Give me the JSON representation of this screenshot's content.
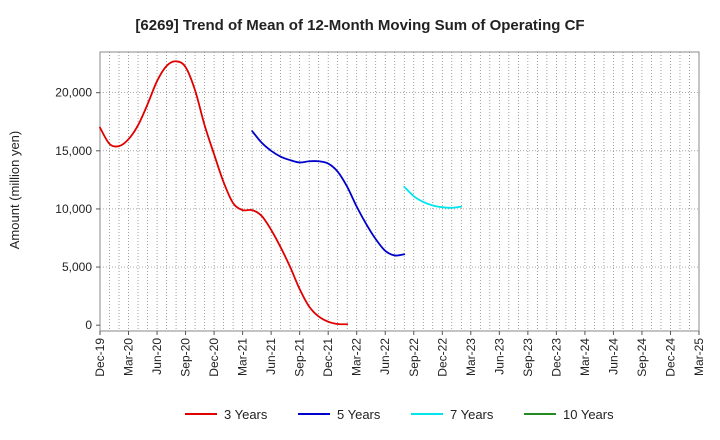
{
  "chart_data": {
    "type": "line",
    "title": "[6269]  Trend of Mean of 12-Month Moving Sum of Operating CF",
    "ylabel": "Amount (million yen)",
    "xlabel": "",
    "ylim": [
      -500,
      23500
    ],
    "yticks": [
      0,
      5000,
      10000,
      15000,
      20000
    ],
    "ytick_labels": [
      "0",
      "5,000",
      "10,000",
      "15,000",
      "20,000"
    ],
    "x_categories": [
      "Dec-19",
      "Mar-20",
      "Jun-20",
      "Sep-20",
      "Dec-20",
      "Mar-21",
      "Jun-21",
      "Sep-21",
      "Dec-21",
      "Mar-22",
      "Jun-22",
      "Sep-22",
      "Dec-22",
      "Mar-23",
      "Jun-23",
      "Sep-23",
      "Dec-23",
      "Mar-24",
      "Jun-24",
      "Sep-24",
      "Dec-24",
      "Mar-25"
    ],
    "grid": true,
    "legend_position": "bottom",
    "series": [
      {
        "name": "3 Years",
        "color": "#e00000",
        "points": [
          [
            0,
            17000
          ],
          [
            1,
            15600
          ],
          [
            2,
            15400
          ],
          [
            3,
            16000
          ],
          [
            4,
            17200
          ],
          [
            5,
            19000
          ],
          [
            6,
            21000
          ],
          [
            7,
            22300
          ],
          [
            8,
            22700
          ],
          [
            9,
            22200
          ],
          [
            10,
            20200
          ],
          [
            11,
            17200
          ],
          [
            12,
            14700
          ],
          [
            13,
            12300
          ],
          [
            14,
            10500
          ],
          [
            15,
            9900
          ],
          [
            16,
            9900
          ],
          [
            17,
            9400
          ],
          [
            18,
            8200
          ],
          [
            19,
            6700
          ],
          [
            20,
            5000
          ],
          [
            21,
            3100
          ],
          [
            22,
            1600
          ],
          [
            23,
            750
          ],
          [
            24,
            300
          ],
          [
            25,
            100
          ],
          [
            26,
            80
          ]
        ]
      },
      {
        "name": "5 Years",
        "color": "#0000cc",
        "points": [
          [
            16,
            16700
          ],
          [
            17,
            15700
          ],
          [
            18,
            15000
          ],
          [
            19,
            14500
          ],
          [
            20,
            14200
          ],
          [
            21,
            14000
          ],
          [
            22,
            14100
          ],
          [
            23,
            14100
          ],
          [
            24,
            13900
          ],
          [
            25,
            13200
          ],
          [
            26,
            11900
          ],
          [
            27,
            10200
          ],
          [
            28,
            8700
          ],
          [
            29,
            7400
          ],
          [
            30,
            6400
          ],
          [
            31,
            6000
          ],
          [
            32,
            6100
          ]
        ]
      },
      {
        "name": "7 Years",
        "color": "#00e5ee",
        "points": [
          [
            32,
            11900
          ],
          [
            33,
            11100
          ],
          [
            34,
            10600
          ],
          [
            35,
            10300
          ],
          [
            36,
            10150
          ],
          [
            37,
            10100
          ],
          [
            38,
            10200
          ]
        ]
      },
      {
        "name": "10 Years",
        "color": "#228b22",
        "points": []
      }
    ]
  }
}
